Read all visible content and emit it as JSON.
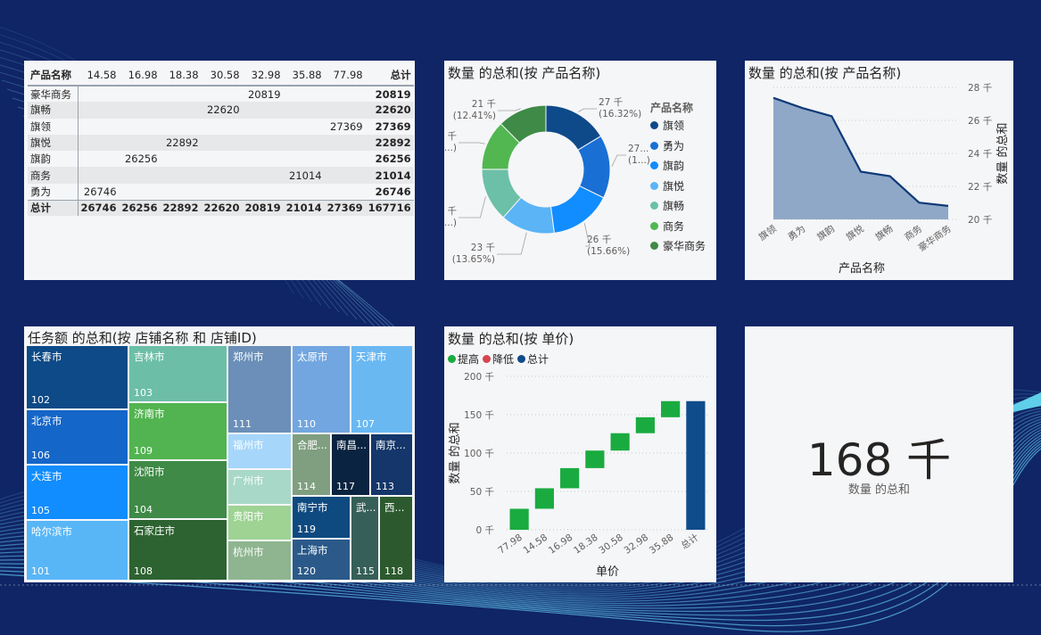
{
  "colors": {
    "background": "#0f2566",
    "card": "#f5f6f8",
    "area": "#8fa8c8",
    "area_line": "#0f3a78",
    "increase": "#1aab40",
    "decrease": "#d64550",
    "total": "#0f4c8c"
  },
  "matrix": {
    "header_label": "产品名称",
    "columns": [
      "14.58",
      "16.98",
      "18.38",
      "30.58",
      "32.98",
      "35.88",
      "77.98"
    ],
    "total_label": "总计",
    "rows": [
      {
        "name": "豪华商务",
        "cells": [
          "",
          "",
          "",
          "",
          "20819",
          "",
          ""
        ],
        "total": "20819"
      },
      {
        "name": "旗畅",
        "cells": [
          "",
          "",
          "",
          "22620",
          "",
          "",
          ""
        ],
        "total": "22620"
      },
      {
        "name": "旗领",
        "cells": [
          "",
          "",
          "",
          "",
          "",
          "",
          "27369"
        ],
        "total": "27369"
      },
      {
        "name": "旗悦",
        "cells": [
          "",
          "",
          "22892",
          "",
          "",
          "",
          ""
        ],
        "total": "22892"
      },
      {
        "name": "旗韵",
        "cells": [
          "",
          "26256",
          "",
          "",
          "",
          "",
          ""
        ],
        "total": "26256"
      },
      {
        "name": "商务",
        "cells": [
          "",
          "",
          "",
          "",
          "",
          "21014",
          ""
        ],
        "total": "21014"
      },
      {
        "name": "勇为",
        "cells": [
          "26746",
          "",
          "",
          "",
          "",
          "",
          ""
        ],
        "total": "26746"
      }
    ],
    "totals": {
      "name": "总计",
      "cells": [
        "26746",
        "26256",
        "22892",
        "22620",
        "20819",
        "21014",
        "27369"
      ],
      "total": "167716"
    }
  },
  "chart_data": [
    {
      "type": "pie",
      "variant": "donut",
      "title": "数量 的总和(按 产品名称)",
      "legend_title": "产品名称",
      "legend_position": "right",
      "slices": [
        {
          "name": "旗领",
          "value": 27369,
          "label": "27 千",
          "pct": "(16.32%)",
          "color": "#0e4a8a"
        },
        {
          "name": "勇为",
          "value": 26746,
          "label": "27...",
          "pct": "(1...)",
          "color": "#1a6fd4"
        },
        {
          "name": "旗韵",
          "value": 26256,
          "label": "26 千",
          "pct": "(15.66%)",
          "color": "#118dff"
        },
        {
          "name": "旗悦",
          "value": 22892,
          "label": "23 千",
          "pct": "(13.65%)",
          "color": "#5ab4f5"
        },
        {
          "name": "旗畅",
          "value": 22620,
          "label": "23 千",
          "pct": "(13....)",
          "color": "#6cc0a8"
        },
        {
          "name": "商务",
          "value": 21014,
          "label": "21 千",
          "pct": "(12....)",
          "color": "#52b750"
        },
        {
          "name": "豪华商务",
          "value": 20819,
          "label": "21 千",
          "pct": "(12.41%)",
          "color": "#3e8a46"
        }
      ]
    },
    {
      "type": "area",
      "title": "数量 的总和(按 产品名称)",
      "xlabel": "产品名称",
      "ylabel": "数量 的总和",
      "categories": [
        "旗领",
        "勇为",
        "旗韵",
        "旗悦",
        "旗畅",
        "商务",
        "豪华商务"
      ],
      "values": [
        27369,
        26746,
        26256,
        22892,
        22620,
        21014,
        20819
      ],
      "ylim": [
        20000,
        28000
      ],
      "yticks": [
        {
          "v": 20000,
          "label": "20 千"
        },
        {
          "v": 22000,
          "label": "22 千"
        },
        {
          "v": 24000,
          "label": "24 千"
        },
        {
          "v": 26000,
          "label": "26 千"
        },
        {
          "v": 28000,
          "label": "28 千"
        }
      ],
      "yaxis_side": "right",
      "grid": true
    },
    {
      "type": "treemap",
      "title": "任务额 的总和(按 店铺名称 和 店铺ID)",
      "items": [
        {
          "name": "长春市",
          "value": "102",
          "color": "#0d4a87"
        },
        {
          "name": "北京市",
          "value": "106",
          "color": "#1466c8"
        },
        {
          "name": "大连市",
          "value": "105",
          "color": "#118dff"
        },
        {
          "name": "哈尔滨市",
          "value": "101",
          "color": "#58b6f7"
        },
        {
          "name": "吉林市",
          "value": "103",
          "color": "#6cbfa6"
        },
        {
          "name": "济南市",
          "value": "109",
          "color": "#52b450"
        },
        {
          "name": "沈阳市",
          "value": "104",
          "color": "#3e8a46"
        },
        {
          "name": "石家庄市",
          "value": "108",
          "color": "#2d6331"
        },
        {
          "name": "郑州市",
          "value": "111",
          "color": "#6b8fb8"
        },
        {
          "name": "太原市",
          "value": "110",
          "color": "#72a6e0"
        },
        {
          "name": "天津市",
          "value": "107",
          "color": "#6ab8f2"
        },
        {
          "name": "福州市",
          "value": "",
          "color": "#a6d6fa"
        },
        {
          "name": "广州市",
          "value": "",
          "color": "#a8d8c8"
        },
        {
          "name": "贵阳市",
          "value": "",
          "color": "#9ed394"
        },
        {
          "name": "杭州市",
          "value": "",
          "color": "#8eb58f"
        },
        {
          "name": "合肥...",
          "value": "114",
          "color": "#7f9f80"
        },
        {
          "name": "南昌...",
          "value": "117",
          "color": "#0a2340"
        },
        {
          "name": "南京...",
          "value": "113",
          "color": "#14366a"
        },
        {
          "name": "南宁市",
          "value": "119",
          "color": "#0e4a80"
        },
        {
          "name": "上海市",
          "value": "120",
          "color": "#2b5a8a"
        },
        {
          "name": "武...",
          "value": "115",
          "color": "#365f58"
        },
        {
          "name": "西...",
          "value": "118",
          "color": "#2c5a2e"
        }
      ]
    },
    {
      "type": "bar",
      "variant": "waterfall",
      "title": "数量 的总和(按 单价)",
      "xlabel": "单价",
      "ylabel": "数量 的总和",
      "legend": [
        {
          "name": "提高",
          "color": "#1aab40"
        },
        {
          "name": "降低",
          "color": "#d64550"
        },
        {
          "name": "总计",
          "color": "#0f4c8c"
        }
      ],
      "legend_position": "top-left",
      "categories": [
        "77.98",
        "14.58",
        "16.98",
        "18.38",
        "30.58",
        "32.98",
        "35.88",
        "总计"
      ],
      "values": [
        27369,
        26746,
        26256,
        22892,
        22620,
        20819,
        21014,
        167716
      ],
      "ylim": [
        0,
        200000
      ],
      "yticks": [
        {
          "v": 0,
          "label": "0 千"
        },
        {
          "v": 50000,
          "label": "50 千"
        },
        {
          "v": 100000,
          "label": "100 千"
        },
        {
          "v": 150000,
          "label": "150 千"
        },
        {
          "v": 200000,
          "label": "200 千"
        }
      ],
      "grid": true
    }
  ],
  "kpi": {
    "value": "168 千",
    "label": "数量 的总和"
  }
}
